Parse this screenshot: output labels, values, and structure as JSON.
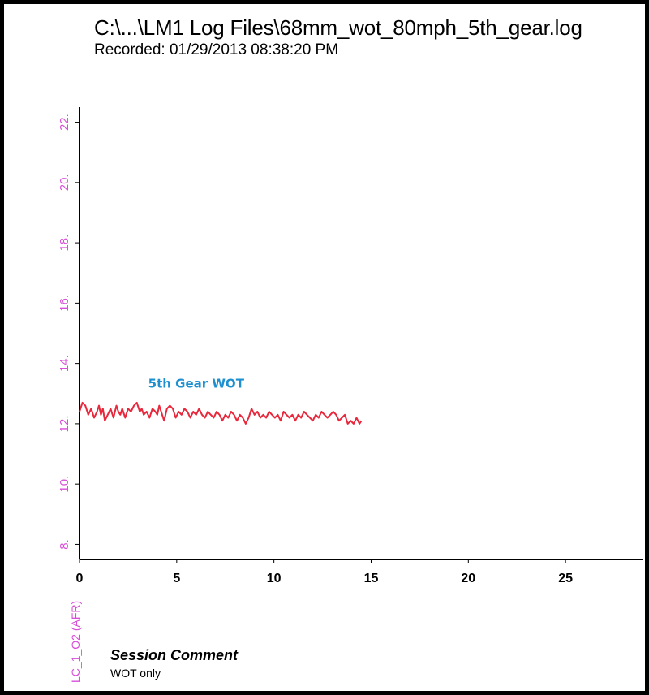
{
  "header": {
    "title": "C:\\...\\LM1 Log Files\\68mm_wot_80mph_5th_gear.log",
    "recorded": "Recorded: 01/29/2013 08:38:20 PM"
  },
  "session": {
    "heading": "Session Comment",
    "comment": "WOT only"
  },
  "colors": {
    "series": "#e8283c",
    "axis_text": "#d84fd8",
    "annotation": "#1e90d0",
    "axis": "#000000"
  },
  "chart_data": {
    "type": "line",
    "title": "",
    "xlabel": "",
    "ylabel": "LC_1_O2 (AFR)",
    "xlim": [
      0,
      29
    ],
    "ylim": [
      7.5,
      22.5
    ],
    "xticks": [
      0,
      5,
      10,
      15,
      20,
      25
    ],
    "yticks": [
      8,
      10,
      12,
      14,
      16,
      18,
      20,
      22
    ],
    "grid": false,
    "annotations": [
      {
        "text": "5th Gear WOT",
        "x": 6.0,
        "y": 13.2
      }
    ],
    "series": [
      {
        "x": [
          0,
          0.15,
          0.3,
          0.45,
          0.6,
          0.75,
          0.9,
          1.0,
          1.1,
          1.2,
          1.3,
          1.45,
          1.6,
          1.75,
          1.9,
          2.0,
          2.1,
          2.2,
          2.35,
          2.5,
          2.65,
          2.8,
          2.95,
          3.1,
          3.2,
          3.3,
          3.45,
          3.6,
          3.75,
          3.9,
          4.0,
          4.1,
          4.2,
          4.35,
          4.5,
          4.65,
          4.8,
          4.95,
          5.1,
          5.25,
          5.4,
          5.55,
          5.7,
          5.85,
          6.0,
          6.15,
          6.3,
          6.45,
          6.6,
          6.75,
          6.9,
          7.05,
          7.2,
          7.35,
          7.5,
          7.65,
          7.8,
          7.95,
          8.1,
          8.25,
          8.4,
          8.55,
          8.7,
          8.85,
          9.0,
          9.15,
          9.3,
          9.45,
          9.6,
          9.75,
          9.9,
          10.05,
          10.2,
          10.35,
          10.5,
          10.65,
          10.8,
          10.95,
          11.1,
          11.25,
          11.4,
          11.55,
          11.7,
          11.85,
          12.0,
          12.15,
          12.3,
          12.45,
          12.6,
          12.75,
          12.9,
          13.05,
          13.2,
          13.35,
          13.5,
          13.65,
          13.8,
          13.95,
          14.1,
          14.25,
          14.4,
          14.5
        ],
        "y": [
          12.4,
          12.7,
          12.6,
          12.3,
          12.5,
          12.2,
          12.4,
          12.6,
          12.3,
          12.5,
          12.1,
          12.3,
          12.5,
          12.2,
          12.6,
          12.4,
          12.3,
          12.5,
          12.2,
          12.5,
          12.4,
          12.6,
          12.7,
          12.4,
          12.5,
          12.3,
          12.4,
          12.2,
          12.5,
          12.4,
          12.3,
          12.6,
          12.4,
          12.1,
          12.5,
          12.6,
          12.5,
          12.2,
          12.4,
          12.3,
          12.5,
          12.4,
          12.2,
          12.4,
          12.3,
          12.5,
          12.3,
          12.2,
          12.4,
          12.3,
          12.2,
          12.4,
          12.3,
          12.1,
          12.3,
          12.2,
          12.4,
          12.3,
          12.1,
          12.3,
          12.2,
          12.0,
          12.2,
          12.5,
          12.3,
          12.4,
          12.2,
          12.3,
          12.2,
          12.4,
          12.3,
          12.2,
          12.3,
          12.1,
          12.4,
          12.3,
          12.2,
          12.3,
          12.1,
          12.3,
          12.2,
          12.4,
          12.3,
          12.2,
          12.1,
          12.3,
          12.2,
          12.4,
          12.3,
          12.2,
          12.3,
          12.4,
          12.3,
          12.1,
          12.2,
          12.3,
          12.0,
          12.1,
          12.0,
          12.2,
          12.0,
          12.1
        ]
      }
    ]
  }
}
